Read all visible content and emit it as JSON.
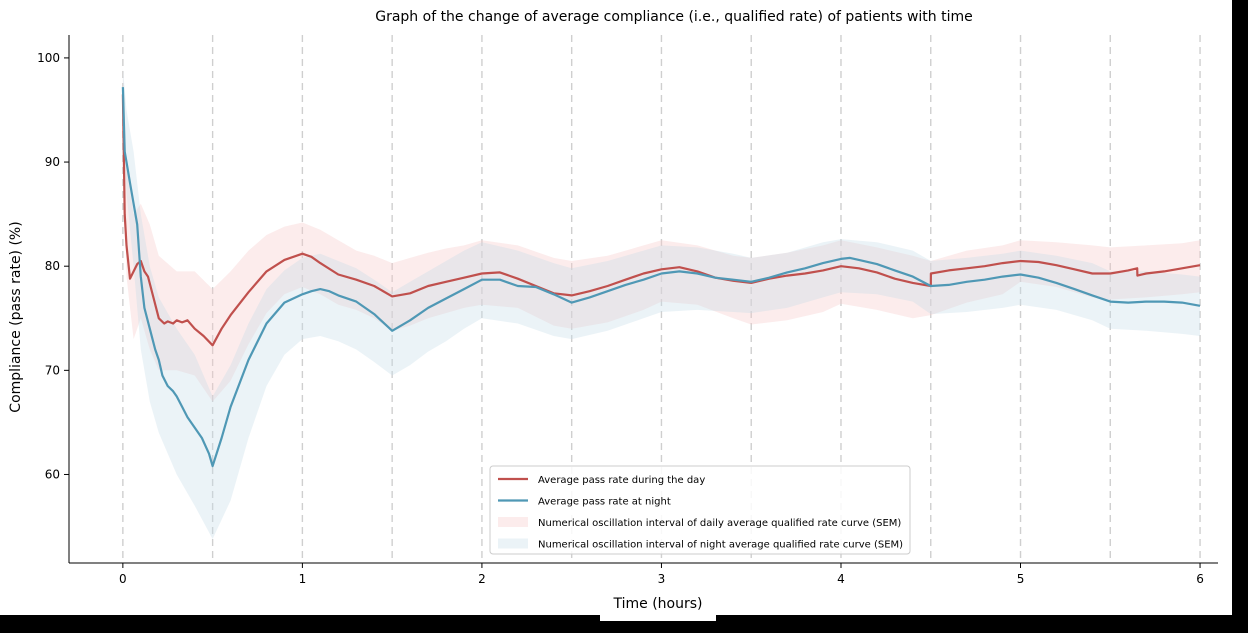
{
  "chart_data": {
    "type": "line",
    "title": "Graph of the change of average compliance (i.e., qualified rate) of patients with time",
    "xlabel": "Time (hours)",
    "ylabel": "Compliance (pass rate)    (%)",
    "xlim": [
      -0.3,
      6.1
    ],
    "ylim": [
      51.5,
      102.2
    ],
    "xticks": [
      0,
      1,
      2,
      3,
      4,
      5,
      6
    ],
    "yticks": [
      60,
      70,
      80,
      90,
      100
    ],
    "grid": "vertical dashed lines every 0.5 hours",
    "legend_position": "lower-center",
    "series": [
      {
        "name": "Average pass rate during the day",
        "color": "#c0504d",
        "x": [
          0,
          0.01,
          0.02,
          0.04,
          0.06,
          0.08,
          0.1,
          0.12,
          0.14,
          0.17,
          0.2,
          0.23,
          0.25,
          0.28,
          0.3,
          0.33,
          0.36,
          0.4,
          0.45,
          0.5,
          0.55,
          0.6,
          0.7,
          0.8,
          0.9,
          1.0,
          1.05,
          1.1,
          1.2,
          1.3,
          1.4,
          1.5,
          1.6,
          1.7,
          1.8,
          1.9,
          2.0,
          2.1,
          2.2,
          2.3,
          2.4,
          2.5,
          2.6,
          2.7,
          2.8,
          2.9,
          3.0,
          3.1,
          3.2,
          3.3,
          3.4,
          3.5,
          3.6,
          3.7,
          3.8,
          3.9,
          4.0,
          4.1,
          4.2,
          4.3,
          4.4,
          4.5,
          4.501,
          4.6,
          4.7,
          4.8,
          4.9,
          5.0,
          5.1,
          5.2,
          5.3,
          5.4,
          5.5,
          5.6,
          5.65,
          5.651,
          5.7,
          5.8,
          5.9,
          6.0
        ],
        "y": [
          96.5,
          85,
          82,
          78.8,
          79.5,
          80.2,
          80.5,
          79.5,
          79,
          77,
          75,
          74.5,
          74.7,
          74.5,
          74.8,
          74.6,
          74.8,
          74,
          73.3,
          72.4,
          74,
          75.3,
          77.5,
          79.5,
          80.6,
          81.2,
          80.9,
          80.3,
          79.2,
          78.7,
          78.1,
          77.1,
          77.4,
          78.1,
          78.5,
          78.9,
          79.3,
          79.4,
          78.8,
          78.1,
          77.4,
          77.2,
          77.6,
          78.1,
          78.7,
          79.3,
          79.7,
          79.9,
          79.5,
          78.9,
          78.6,
          78.4,
          78.8,
          79.1,
          79.3,
          79.6,
          80,
          79.8,
          79.4,
          78.8,
          78.4,
          78.1,
          79.3,
          79.6,
          79.8,
          80,
          80.3,
          80.5,
          80.4,
          80.1,
          79.7,
          79.3,
          79.3,
          79.6,
          79.8,
          79.1,
          79.3,
          79.5,
          79.8,
          80.1
        ]
      },
      {
        "name": "Average pass rate at night",
        "color": "#4f98b5",
        "x": [
          0,
          0.01,
          0.02,
          0.04,
          0.06,
          0.08,
          0.1,
          0.12,
          0.15,
          0.18,
          0.2,
          0.22,
          0.25,
          0.28,
          0.3,
          0.33,
          0.36,
          0.4,
          0.44,
          0.48,
          0.5,
          0.55,
          0.6,
          0.7,
          0.8,
          0.9,
          1.0,
          1.05,
          1.1,
          1.15,
          1.2,
          1.3,
          1.4,
          1.5,
          1.6,
          1.7,
          1.8,
          1.9,
          2.0,
          2.1,
          2.2,
          2.3,
          2.4,
          2.5,
          2.6,
          2.7,
          2.8,
          2.9,
          3.0,
          3.1,
          3.2,
          3.3,
          3.4,
          3.5,
          3.6,
          3.7,
          3.8,
          3.9,
          4.0,
          4.05,
          4.1,
          4.2,
          4.3,
          4.4,
          4.5,
          4.6,
          4.7,
          4.8,
          4.9,
          5.0,
          5.1,
          5.2,
          5.3,
          5.4,
          5.5,
          5.6,
          5.7,
          5.8,
          5.9,
          6.0
        ],
        "y": [
          97.2,
          91,
          90,
          88,
          86,
          84,
          79,
          76,
          74,
          72,
          71,
          69.5,
          68.5,
          68,
          67.5,
          66.5,
          65.5,
          64.5,
          63.5,
          62,
          60.8,
          63.5,
          66.5,
          71,
          74.5,
          76.5,
          77.3,
          77.6,
          77.8,
          77.6,
          77.2,
          76.6,
          75.4,
          73.8,
          74.8,
          76,
          76.9,
          77.8,
          78.7,
          78.7,
          78.1,
          78,
          77.3,
          76.5,
          77,
          77.6,
          78.2,
          78.7,
          79.3,
          79.5,
          79.3,
          78.9,
          78.7,
          78.5,
          78.9,
          79.4,
          79.8,
          80.3,
          80.7,
          80.8,
          80.6,
          80.2,
          79.6,
          79,
          78.1,
          78.2,
          78.5,
          78.7,
          79,
          79.2,
          78.9,
          78.4,
          77.8,
          77.2,
          76.6,
          76.5,
          76.6,
          76.6,
          76.5,
          76.2
        ]
      }
    ],
    "bands": [
      {
        "name": "Numerical oscillation interval of daily average qualified rate curve (SEM)",
        "color": "#f7c9c9",
        "opacity": 0.35,
        "x": [
          0,
          0.02,
          0.06,
          0.1,
          0.15,
          0.2,
          0.3,
          0.4,
          0.5,
          0.6,
          0.7,
          0.8,
          0.9,
          1.0,
          1.1,
          1.2,
          1.3,
          1.4,
          1.5,
          1.6,
          1.7,
          1.8,
          1.9,
          2.0,
          2.2,
          2.4,
          2.5,
          2.7,
          2.9,
          3.0,
          3.2,
          3.4,
          3.5,
          3.7,
          3.9,
          4.0,
          4.2,
          4.4,
          4.5,
          4.7,
          4.9,
          5.0,
          5.2,
          5.4,
          5.5,
          5.7,
          5.9,
          6.0
        ],
        "upper": [
          99,
          89.5,
          85,
          86,
          84,
          81,
          79.5,
          79.5,
          77.8,
          79.5,
          81.5,
          83,
          83.8,
          84.2,
          83.5,
          82.5,
          81.5,
          81,
          80.3,
          80.8,
          81.3,
          81.7,
          82,
          82.5,
          82,
          80.8,
          80.5,
          81,
          82,
          82.5,
          82,
          81,
          80.8,
          81.3,
          82,
          82.5,
          81.8,
          81,
          80.5,
          81.5,
          82,
          82.5,
          82.3,
          82,
          81.8,
          82,
          82.2,
          82.5
        ],
        "lower": [
          92,
          79,
          73,
          75,
          72,
          70,
          70,
          69.5,
          67,
          69,
          72.5,
          75.5,
          77.3,
          78,
          77.3,
          76.3,
          75.8,
          75,
          73.8,
          74.3,
          75,
          75.5,
          76,
          76.3,
          76,
          74.3,
          74,
          74.6,
          75.8,
          76.6,
          76.3,
          75,
          74.4,
          74.8,
          75.6,
          76.4,
          75.8,
          75,
          75.3,
          76.5,
          77.3,
          78.5,
          78,
          77,
          76.8,
          77,
          77.3,
          77.5
        ]
      },
      {
        "name": "Numerical oscillation interval of night average qualified rate curve (SEM)",
        "color": "#c6dde9",
        "opacity": 0.35,
        "x": [
          0,
          0.02,
          0.06,
          0.1,
          0.15,
          0.2,
          0.3,
          0.4,
          0.5,
          0.6,
          0.7,
          0.8,
          0.9,
          1.0,
          1.1,
          1.2,
          1.3,
          1.4,
          1.5,
          1.6,
          1.7,
          1.8,
          1.9,
          2.0,
          2.2,
          2.4,
          2.5,
          2.7,
          2.9,
          3.0,
          3.2,
          3.4,
          3.5,
          3.7,
          3.9,
          4.0,
          4.2,
          4.4,
          4.5,
          4.7,
          4.9,
          5.0,
          5.2,
          5.4,
          5.5,
          5.7,
          5.9,
          6.0
        ],
        "upper": [
          99,
          95,
          91,
          85,
          80,
          77,
          74,
          71.5,
          67.5,
          70.5,
          74.5,
          77.8,
          79.6,
          80.8,
          81.2,
          80.5,
          79.8,
          78.7,
          77.5,
          78.5,
          79.5,
          80.5,
          81.5,
          82.3,
          81.5,
          80.3,
          79.8,
          80.5,
          81.5,
          82,
          81.8,
          81.2,
          80.8,
          81.3,
          82.3,
          82.6,
          82.3,
          81.5,
          80.5,
          80.8,
          81.2,
          81.5,
          81,
          80.3,
          79.5,
          79.5,
          79.2,
          79
        ],
        "lower": [
          95,
          87,
          80,
          72,
          67,
          64,
          60,
          57,
          53.8,
          57.5,
          63.5,
          68.5,
          71.5,
          73,
          73.3,
          72.8,
          72,
          70.8,
          69.5,
          70.5,
          71.8,
          72.8,
          74,
          75,
          74.5,
          73.3,
          73,
          73.8,
          75,
          75.6,
          75.8,
          75.6,
          75.5,
          76,
          77,
          77.5,
          77.3,
          76.6,
          75.4,
          75.6,
          76,
          76.3,
          75.8,
          74.8,
          74,
          73.8,
          73.5,
          73.3
        ]
      }
    ]
  }
}
